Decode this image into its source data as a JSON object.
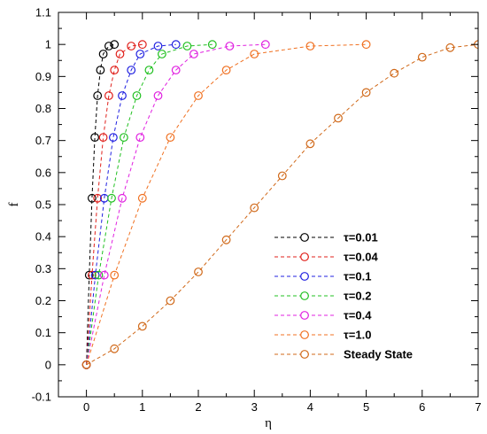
{
  "chart_data": {
    "type": "line",
    "title": "",
    "xlabel": "η",
    "ylabel": "f",
    "xlim": [
      -0.5,
      7
    ],
    "ylim": [
      -0.1,
      1.1
    ],
    "xticks": [
      "0",
      "1",
      "2",
      "3",
      "4",
      "5",
      "6",
      "7"
    ],
    "yticks": [
      "-0.1",
      "0",
      "0.1",
      "0.2",
      "0.3",
      "0.4",
      "0.5",
      "0.6",
      "0.7",
      "0.8",
      "0.9",
      "1",
      "1.1"
    ],
    "grid": false,
    "legend_position": "lower-right",
    "series": [
      {
        "name": "τ=0.01",
        "color": "#000000",
        "x": [
          0.0,
          0.05,
          0.1,
          0.15,
          0.2,
          0.25,
          0.3,
          0.4,
          0.5
        ],
        "y": [
          0.0,
          0.28,
          0.52,
          0.71,
          0.84,
          0.92,
          0.97,
          0.995,
          1.0
        ]
      },
      {
        "name": "τ=0.04",
        "color": "#e0201b",
        "x": [
          0.0,
          0.1,
          0.2,
          0.3,
          0.4,
          0.5,
          0.6,
          0.8,
          1.0
        ],
        "y": [
          0.0,
          0.28,
          0.52,
          0.71,
          0.84,
          0.92,
          0.97,
          0.995,
          1.0
        ]
      },
      {
        "name": "τ=0.1",
        "color": "#2020e0",
        "x": [
          0.0,
          0.16,
          0.32,
          0.48,
          0.64,
          0.8,
          0.96,
          1.28,
          1.6
        ],
        "y": [
          0.0,
          0.28,
          0.52,
          0.71,
          0.84,
          0.92,
          0.97,
          0.995,
          1.0
        ]
      },
      {
        "name": "τ=0.2",
        "color": "#20c020",
        "x": [
          0.0,
          0.22,
          0.45,
          0.67,
          0.9,
          1.12,
          1.35,
          1.8,
          2.25
        ],
        "y": [
          0.0,
          0.28,
          0.52,
          0.71,
          0.84,
          0.92,
          0.97,
          0.995,
          1.0
        ]
      },
      {
        "name": "τ=0.4",
        "color": "#e020e0",
        "x": [
          0.0,
          0.32,
          0.64,
          0.96,
          1.28,
          1.6,
          1.92,
          2.56,
          3.2
        ],
        "y": [
          0.0,
          0.28,
          0.52,
          0.71,
          0.84,
          0.92,
          0.97,
          0.995,
          1.0
        ]
      },
      {
        "name": "τ=1.0",
        "color": "#f07020",
        "x": [
          0.0,
          0.5,
          1.0,
          1.5,
          2.0,
          2.5,
          3.0,
          4.0,
          5.0
        ],
        "y": [
          0.0,
          0.28,
          0.52,
          0.71,
          0.84,
          0.92,
          0.97,
          0.995,
          1.0
        ]
      },
      {
        "name": "Steady State",
        "color": "#d06818",
        "x": [
          0.0,
          0.5,
          1.0,
          1.5,
          2.0,
          2.5,
          3.0,
          3.5,
          4.0,
          4.5,
          5.0,
          5.5,
          6.0,
          6.5,
          7.0
        ],
        "y": [
          0.0,
          0.05,
          0.12,
          0.2,
          0.29,
          0.39,
          0.49,
          0.59,
          0.69,
          0.77,
          0.85,
          0.91,
          0.96,
          0.99,
          1.0
        ]
      }
    ]
  }
}
